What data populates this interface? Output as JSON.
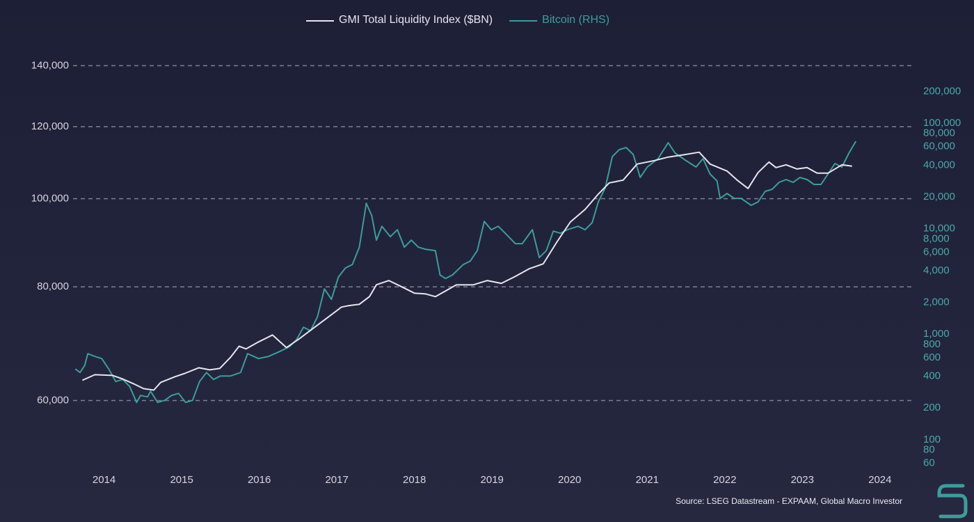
{
  "chart_data": {
    "type": "line",
    "source": "Source: LSEG Datastream - EXPAAM, Global Macro Investor",
    "xlim": [
      2013.6,
      2024.45
    ],
    "xticks": [
      2014,
      2015,
      2016,
      2017,
      2018,
      2019,
      2020,
      2021,
      2022,
      2023,
      2024
    ],
    "ylim": [
      50800,
      143600
    ],
    "yscale": "log",
    "yticks": [
      {
        "value": 60000,
        "label": "60,000"
      },
      {
        "value": 80000,
        "label": "80,000"
      },
      {
        "value": 100000,
        "label": "100,000"
      },
      {
        "value": 120000,
        "label": "120,000"
      },
      {
        "value": 140000,
        "label": "140,000"
      }
    ],
    "y2lim": [
      56,
      437000
    ],
    "y2scale": "log",
    "y2ticks": [
      60,
      80,
      100,
      200,
      400,
      600,
      800,
      {
        "value": 1000,
        "label": "1,000"
      },
      {
        "value": 2000,
        "label": "2,000"
      },
      {
        "value": 4000,
        "label": "4,000"
      },
      {
        "value": 6000,
        "label": "6,000"
      },
      {
        "value": 8000,
        "label": "8,000"
      },
      {
        "value": 10000,
        "label": "10,000"
      },
      {
        "value": 20000,
        "label": "20,000"
      },
      {
        "value": 40000,
        "label": "40,000"
      },
      {
        "value": 60000,
        "label": "60,000"
      },
      {
        "value": 80000,
        "label": "80,000"
      },
      {
        "value": 100000,
        "label": "100,000"
      },
      {
        "value": 200000,
        "label": "200,000"
      }
    ],
    "grid": true,
    "legend": "top",
    "series": [
      {
        "name": "GMI Total Liquidity Index ($BN)",
        "color": "#e6e6f0",
        "axis": "y",
        "x": [
          2013.72,
          2013.88,
          2014.11,
          2014.24,
          2014.38,
          2014.51,
          2014.64,
          2014.73,
          2014.91,
          2015.04,
          2015.22,
          2015.36,
          2015.49,
          2015.63,
          2015.74,
          2015.83,
          2015.99,
          2016.17,
          2016.35,
          2016.52,
          2016.7,
          2016.88,
          2017.06,
          2017.15,
          2017.29,
          2017.42,
          2017.51,
          2017.67,
          2017.82,
          2018.0,
          2018.14,
          2018.27,
          2018.4,
          2018.54,
          2018.76,
          2018.94,
          2019.12,
          2019.3,
          2019.48,
          2019.66,
          2019.84,
          2020.01,
          2020.2,
          2020.37,
          2020.51,
          2020.69,
          2020.87,
          2021.09,
          2021.27,
          2021.45,
          2021.67,
          2021.81,
          2022.03,
          2022.16,
          2022.3,
          2022.43,
          2022.57,
          2022.66,
          2022.79,
          2022.93,
          2023.06,
          2023.19,
          2023.33,
          2023.51,
          2023.64
        ],
        "values": [
          63150,
          64050,
          63940,
          63370,
          62600,
          61830,
          61610,
          62820,
          63710,
          64270,
          65190,
          64850,
          65070,
          66940,
          68850,
          68370,
          69590,
          70830,
          68610,
          70200,
          72090,
          74020,
          76010,
          76280,
          76550,
          78050,
          80420,
          81280,
          80140,
          78740,
          78600,
          78050,
          79160,
          80420,
          80420,
          81280,
          80710,
          82150,
          83760,
          84800,
          89720,
          94270,
          97310,
          101170,
          104070,
          104800,
          109150,
          110110,
          111100,
          111680,
          112470,
          109150,
          107240,
          104800,
          102610,
          106850,
          109720,
          108190,
          108950,
          107810,
          108190,
          106660,
          106660,
          108950,
          108570
        ]
      },
      {
        "name": "Bitcoin (RHS)",
        "color": "#3f9c9b",
        "axis": "y2",
        "x": [
          2013.63,
          2013.69,
          2013.75,
          2013.79,
          2013.88,
          2013.97,
          2014.06,
          2014.15,
          2014.24,
          2014.33,
          2014.42,
          2014.47,
          2014.56,
          2014.6,
          2014.69,
          2014.78,
          2014.87,
          2014.96,
          2015.05,
          2015.14,
          2015.23,
          2015.32,
          2015.41,
          2015.5,
          2015.63,
          2015.76,
          2015.85,
          2015.99,
          2016.12,
          2016.26,
          2016.39,
          2016.48,
          2016.57,
          2016.66,
          2016.75,
          2016.84,
          2016.93,
          2017.02,
          2017.11,
          2017.2,
          2017.29,
          2017.38,
          2017.45,
          2017.51,
          2017.58,
          2017.69,
          2017.78,
          2017.87,
          2017.96,
          2018.05,
          2018.14,
          2018.27,
          2018.33,
          2018.4,
          2018.49,
          2018.63,
          2018.72,
          2018.81,
          2018.9,
          2018.99,
          2019.08,
          2019.17,
          2019.3,
          2019.39,
          2019.52,
          2019.61,
          2019.7,
          2019.79,
          2019.88,
          2019.97,
          2020.11,
          2020.2,
          2020.29,
          2020.37,
          2020.46,
          2020.55,
          2020.64,
          2020.73,
          2020.82,
          2020.91,
          2021.0,
          2021.14,
          2021.27,
          2021.36,
          2021.49,
          2021.63,
          2021.72,
          2021.81,
          2021.9,
          2021.94,
          2022.03,
          2022.12,
          2022.21,
          2022.34,
          2022.43,
          2022.52,
          2022.61,
          2022.7,
          2022.79,
          2022.88,
          2022.97,
          2023.06,
          2023.15,
          2023.24,
          2023.33,
          2023.42,
          2023.51,
          2023.6,
          2023.69
        ],
        "values": [
          468,
          434,
          505,
          655,
          616,
          588,
          468,
          356,
          373,
          320,
          226,
          263,
          255,
          288,
          226,
          236,
          263,
          275,
          226,
          236,
          356,
          434,
          373,
          402,
          402,
          434,
          655,
          588,
          616,
          685,
          762,
          887,
          1166,
          1080,
          1464,
          2690,
          2141,
          3483,
          4244,
          4579,
          6694,
          17445,
          13270,
          7794,
          10560,
          8410,
          9790,
          6694,
          7794,
          6694,
          6397,
          6204,
          3646,
          3379,
          3646,
          4579,
          4939,
          6204,
          11750,
          9790,
          10560,
          9075,
          7225,
          7225,
          9790,
          5329,
          6204,
          9498,
          9075,
          9790,
          10560,
          9790,
          11400,
          17980,
          24370,
          48290,
          56220,
          58840,
          50520,
          30600,
          38440,
          46130,
          65460,
          52110,
          44750,
          38440,
          46130,
          33020,
          28360,
          19400,
          21580,
          19400,
          19400,
          16670,
          17980,
          22590,
          23640,
          27520,
          29240,
          27520,
          30600,
          29240,
          26290,
          26290,
          33020,
          41480,
          38440,
          52110,
          67450
        ]
      }
    ]
  }
}
